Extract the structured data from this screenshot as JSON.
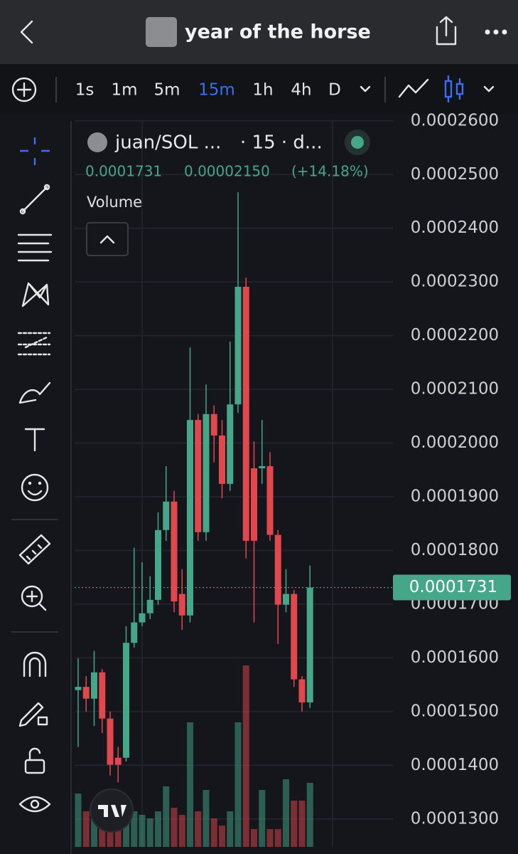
{
  "header": {
    "title": "year of the horse"
  },
  "toolbar": {
    "intervals": [
      "1s",
      "1m",
      "5m",
      "15m",
      "1h",
      "4h",
      "D"
    ],
    "active": 3
  },
  "legend": {
    "symbol": "juan/SOL ...",
    "interval": "· 15 · d...",
    "price": "0.0001731",
    "change": "0.00002150",
    "change_pct": "(+14.18%)",
    "study": "Volume"
  },
  "chart_data": {
    "type": "candlestick",
    "up_color": "#45a688",
    "down_color": "#e2474d",
    "open": [
      0.000154,
      0.0001546,
      0.0001524,
      0.0001573,
      0.0001487,
      0.0001414,
      0.0001414,
      0.0001628,
      0.0001666,
      0.0001683,
      0.0001708,
      0.0001838,
      0.0001891,
      0.0001719,
      0.0001679,
      0.0002043,
      0.0001834,
      0.0002054,
      0.0002014,
      0.0001924,
      0.0002072,
      0.0002291,
      0.0001953,
      0.0001953,
      0.0001957,
      0.0001829,
      0.0001699,
      0.0001719,
      0.000156,
      0.0001517
    ],
    "high": [
      0.0001599,
      0.0001566,
      0.0001613,
      0.0001579,
      0.00015,
      0.0001434,
      0.0001659,
      0.0001805,
      0.0001778,
      0.0001752,
      0.0001871,
      0.0001957,
      0.0001911,
      0.0001765,
      0.0002178,
      0.0002054,
      0.0002109,
      0.000207,
      0.0002043,
      0.0002189,
      0.0002467,
      0.0002308,
      0.0002003,
      0.0002043,
      0.0001983,
      0.0001838,
      0.0001765,
      0.0001726,
      0.0001566,
      0.0001772
    ],
    "low": [
      0.0001434,
      0.00015,
      0.0001473,
      0.000146,
      0.0001381,
      0.0001368,
      0.0001407,
      0.0001619,
      0.0001659,
      0.0001672,
      0.0001699,
      0.0001818,
      0.0001685,
      0.0001652,
      0.0001666,
      0.0001818,
      0.0001818,
      0.0001964,
      0.0001897,
      0.0001911,
      0.0002056,
      0.0001785,
      0.0001666,
      0.0001924,
      0.0001818,
      0.0001626,
      0.0001685,
      0.0001546,
      0.00015,
      0.0001507
    ],
    "close": [
      0.0001546,
      0.0001524,
      0.0001573,
      0.0001487,
      0.0001401,
      0.0001401,
      0.0001628,
      0.0001666,
      0.0001683,
      0.0001708,
      0.0001838,
      0.0001891,
      0.0001705,
      0.0001679,
      0.0002043,
      0.0001834,
      0.0002054,
      0.0002014,
      0.0001924,
      0.0002072,
      0.0002291,
      0.0001818,
      0.0001818,
      0.0001957,
      0.0001829,
      0.0001699,
      0.0001719,
      0.000156,
      0.0001517,
      0.0001731
    ],
    "volume": [
      75,
      50,
      60,
      40,
      30,
      25,
      65,
      50,
      45,
      40,
      50,
      85,
      55,
      45,
      175,
      50,
      80,
      40,
      30,
      50,
      175,
      255,
      25,
      80,
      25,
      25,
      95,
      65,
      65,
      90
    ],
    "ylim": [
      0.0001248,
      0.0002613
    ],
    "yticks": [
      {
        "value": 0.00013,
        "label": "0.0001300"
      },
      {
        "value": 0.00014,
        "label": "0.0001400"
      },
      {
        "value": 0.00015,
        "label": "0.0001500"
      },
      {
        "value": 0.00016,
        "label": "0.0001600"
      },
      {
        "value": 0.00017,
        "label": "0.0001700"
      },
      {
        "value": 0.00018,
        "label": "0.0001800"
      },
      {
        "value": 0.00019,
        "label": "0.0001900"
      },
      {
        "value": 0.0002,
        "label": "0.0002000"
      },
      {
        "value": 0.00021,
        "label": "0.0002100"
      },
      {
        "value": 0.00022,
        "label": "0.0002200"
      },
      {
        "value": 0.00023,
        "label": "0.0002300"
      },
      {
        "value": 0.00024,
        "label": "0.0002400"
      },
      {
        "value": 0.00025,
        "label": "0.0002500"
      },
      {
        "value": 0.00026,
        "label": "0.0002600"
      }
    ],
    "grid": true
  }
}
